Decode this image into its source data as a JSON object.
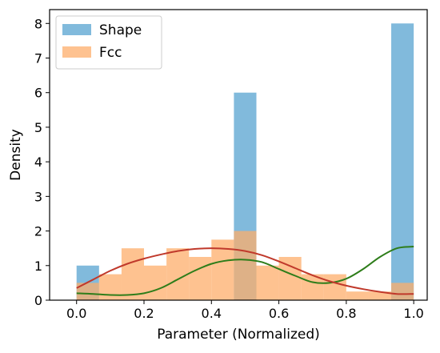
{
  "chart_data": {
    "type": "bar",
    "xlabel": "Parameter (Normalized)",
    "ylabel": "Density",
    "xlim": [
      -0.08,
      1.04
    ],
    "ylim": [
      0,
      8.4
    ],
    "xticks": [
      "0.0",
      "0.2",
      "0.4",
      "0.6",
      "0.8",
      "1.0"
    ],
    "yticks": [
      "0",
      "1",
      "2",
      "3",
      "4",
      "5",
      "6",
      "7",
      "8"
    ],
    "grid": false,
    "legend_position": "top-left",
    "bin_width": 0.0667,
    "series": [
      {
        "name": "Shape",
        "color": "#6baed6",
        "bins": [
          {
            "x0": 0.0,
            "value": 1.0
          },
          {
            "x0": 0.4667,
            "value": 6.0
          },
          {
            "x0": 0.9333,
            "value": 8.0
          }
        ]
      },
      {
        "name": "Fcc",
        "color": "#fdae6b",
        "bins": [
          {
            "x0": 0.0,
            "value": 0.5
          },
          {
            "x0": 0.0667,
            "value": 0.75
          },
          {
            "x0": 0.1333,
            "value": 1.5
          },
          {
            "x0": 0.2,
            "value": 1.0
          },
          {
            "x0": 0.2667,
            "value": 1.5
          },
          {
            "x0": 0.3333,
            "value": 1.25
          },
          {
            "x0": 0.4,
            "value": 1.75
          },
          {
            "x0": 0.4667,
            "value": 2.0
          },
          {
            "x0": 0.5333,
            "value": 1.0
          },
          {
            "x0": 0.6,
            "value": 1.25
          },
          {
            "x0": 0.6667,
            "value": 0.75
          },
          {
            "x0": 0.7333,
            "value": 0.75
          },
          {
            "x0": 0.8,
            "value": 0.25
          },
          {
            "x0": 0.8667,
            "value": 0.25
          },
          {
            "x0": 0.9333,
            "value": 0.5
          }
        ]
      }
    ],
    "density_curves": [
      {
        "color": "#2e7d1a",
        "x": [
          0.0,
          0.05,
          0.1,
          0.15,
          0.2,
          0.25,
          0.3,
          0.35,
          0.4,
          0.45,
          0.5,
          0.55,
          0.6,
          0.65,
          0.7,
          0.75,
          0.8,
          0.85,
          0.9,
          0.95,
          1.0
        ],
        "y": [
          0.2,
          0.18,
          0.15,
          0.15,
          0.2,
          0.35,
          0.6,
          0.85,
          1.05,
          1.15,
          1.17,
          1.1,
          0.9,
          0.7,
          0.52,
          0.5,
          0.62,
          0.9,
          1.25,
          1.5,
          1.55
        ]
      },
      {
        "color": "#c0392b",
        "x": [
          0.0,
          0.05,
          0.1,
          0.15,
          0.2,
          0.25,
          0.3,
          0.35,
          0.4,
          0.45,
          0.5,
          0.55,
          0.6,
          0.65,
          0.7,
          0.75,
          0.8,
          0.85,
          0.9,
          0.95,
          1.0
        ],
        "y": [
          0.35,
          0.6,
          0.85,
          1.05,
          1.2,
          1.32,
          1.42,
          1.48,
          1.5,
          1.48,
          1.42,
          1.3,
          1.12,
          0.92,
          0.72,
          0.55,
          0.42,
          0.32,
          0.24,
          0.18,
          0.18
        ]
      }
    ]
  }
}
